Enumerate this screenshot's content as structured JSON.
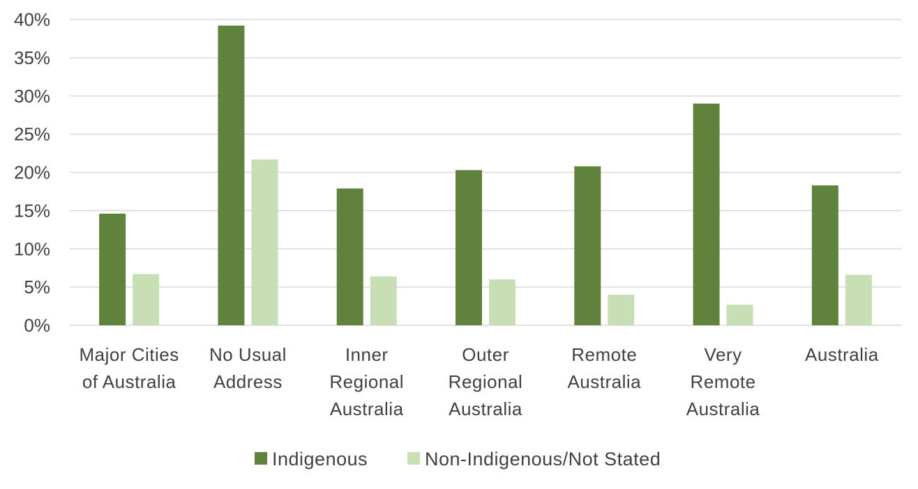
{
  "chart_data": {
    "type": "bar",
    "categories": [
      [
        "Major Cities",
        "of Australia"
      ],
      [
        "No Usual",
        "Address"
      ],
      [
        "Inner",
        "Regional",
        "Australia"
      ],
      [
        "Outer",
        "Regional",
        "Australia"
      ],
      [
        "Remote",
        "Australia"
      ],
      [
        "Very",
        "Remote",
        "Australia"
      ],
      [
        "Australia"
      ]
    ],
    "series": [
      {
        "name": "Indigenous",
        "color": "#5f823d",
        "values": [
          14.6,
          39.2,
          17.9,
          20.3,
          20.8,
          29.0,
          18.3
        ]
      },
      {
        "name": "Non-Indigenous/Not Stated",
        "color": "#c8dfb6",
        "values": [
          6.7,
          21.7,
          6.4,
          6.0,
          4.0,
          2.7,
          6.6
        ]
      }
    ],
    "yticks": [
      "0%",
      "5%",
      "10%",
      "15%",
      "20%",
      "25%",
      "30%",
      "35%",
      "40%"
    ],
    "ylim": [
      0,
      40
    ],
    "grid": true,
    "legend_position": "bottom",
    "title": "",
    "xlabel": "",
    "ylabel": ""
  }
}
